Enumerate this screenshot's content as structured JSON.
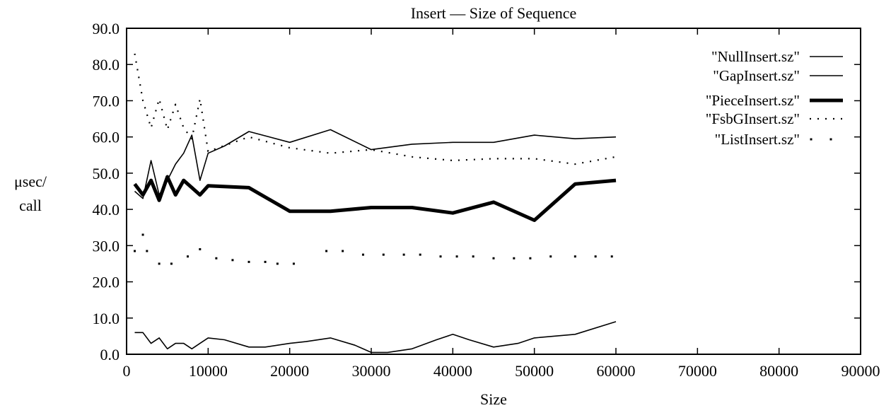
{
  "chart_data": {
    "type": "line",
    "title": "Insert — Size of Sequence",
    "xlabel": "Size",
    "ylabel_lines": [
      "μsec/",
      "call"
    ],
    "xlim": [
      0,
      90000
    ],
    "ylim": [
      0,
      90
    ],
    "x_ticks": [
      0,
      10000,
      20000,
      30000,
      40000,
      50000,
      60000,
      70000,
      80000,
      90000
    ],
    "x_tick_labels": [
      "0",
      "10000",
      "20000",
      "30000",
      "40000",
      "50000",
      "60000",
      "70000",
      "80000",
      "90000"
    ],
    "y_ticks": [
      0,
      10,
      20,
      30,
      40,
      50,
      60,
      70,
      80,
      90
    ],
    "y_tick_labels": [
      "0.0",
      "10.0",
      "20.0",
      "30.0",
      "40.0",
      "50.0",
      "60.0",
      "70.0",
      "80.0",
      "90.0"
    ],
    "grid": false,
    "legend_position": "top-right",
    "series": [
      {
        "name": "\"NullInsert.sz\"",
        "style": "solid",
        "x": [
          1000,
          2000,
          3000,
          4000,
          5000,
          6000,
          7000,
          8000,
          9000,
          10000,
          12000,
          15000,
          17000,
          20000,
          22000,
          25000,
          28000,
          30000,
          32000,
          35000,
          38000,
          40000,
          42000,
          45000,
          48000,
          50000,
          55000,
          60000
        ],
        "y": [
          6.0,
          6.0,
          3.0,
          4.5,
          1.5,
          3.0,
          3.0,
          1.5,
          3.0,
          4.5,
          4.0,
          2.0,
          2.0,
          3.0,
          3.5,
          4.5,
          2.5,
          0.5,
          0.5,
          1.5,
          4.0,
          5.5,
          4.0,
          2.0,
          3.0,
          4.5,
          5.5,
          9.0
        ]
      },
      {
        "name": "\"GapInsert.sz\"",
        "style": "solid",
        "x": [
          1000,
          2000,
          3000,
          4000,
          5000,
          6000,
          7000,
          8000,
          9000,
          10000,
          12000,
          15000,
          20000,
          25000,
          30000,
          35000,
          40000,
          45000,
          50000,
          55000,
          60000
        ],
        "y": [
          45.0,
          43.0,
          53.5,
          44.0,
          48.0,
          52.5,
          55.5,
          60.5,
          48.0,
          55.5,
          57.5,
          61.5,
          58.5,
          62.0,
          56.5,
          58.0,
          58.5,
          58.5,
          60.5,
          59.5,
          60.0
        ]
      },
      {
        "name": "\"PieceInsert.sz\"",
        "style": "thick",
        "x": [
          1000,
          2000,
          3000,
          4000,
          5000,
          6000,
          7000,
          8000,
          9000,
          10000,
          15000,
          20000,
          25000,
          30000,
          35000,
          40000,
          45000,
          50000,
          55000,
          60000
        ],
        "y": [
          47.0,
          44.0,
          48.0,
          42.5,
          49.0,
          44.0,
          48.0,
          46.0,
          44.0,
          46.5,
          46.0,
          39.5,
          39.5,
          40.5,
          40.5,
          39.0,
          42.0,
          37.0,
          47.0,
          48.0
        ]
      },
      {
        "name": "\"FsbGInsert.sz\"",
        "style": "dotted",
        "x": [
          1000,
          2000,
          3000,
          4000,
          5000,
          6000,
          7000,
          8000,
          9000,
          10000,
          15000,
          20000,
          25000,
          30000,
          35000,
          40000,
          45000,
          50000,
          55000,
          60000
        ],
        "y": [
          83.0,
          70.0,
          62.5,
          70.5,
          62.0,
          69.0,
          62.5,
          59.5,
          70.5,
          56.0,
          60.0,
          57.0,
          55.5,
          56.5,
          54.5,
          53.5,
          54.0,
          54.0,
          52.5,
          54.5
        ]
      },
      {
        "name": "\"ListInsert.sz\"",
        "style": "points",
        "x": [
          1000,
          2000,
          2500,
          4000,
          5500,
          7500,
          9000,
          11000,
          13000,
          15000,
          17000,
          18500,
          20500,
          24500,
          26500,
          29000,
          31500,
          34000,
          36000,
          38500,
          40500,
          42500,
          45000,
          47500,
          49500,
          52000,
          55000,
          57500,
          59500
        ],
        "y": [
          28.5,
          33.0,
          28.5,
          25.0,
          25.0,
          27.0,
          29.0,
          26.5,
          26.0,
          25.5,
          25.5,
          25.0,
          25.0,
          28.5,
          28.5,
          27.5,
          27.5,
          27.5,
          27.5,
          27.0,
          27.0,
          27.0,
          26.5,
          26.5,
          26.5,
          27.0,
          27.0,
          27.0,
          27.0
        ]
      }
    ]
  }
}
